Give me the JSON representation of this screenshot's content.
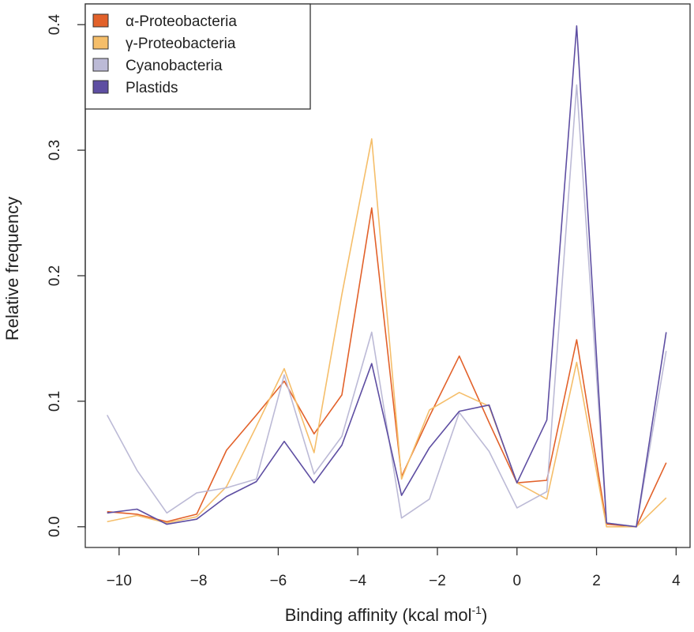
{
  "chart_data": {
    "type": "line",
    "xlabel": "Binding affinity (kcal mol",
    "xlabel_sup": "-1",
    "xlabel_close": ")",
    "ylabel": "Relative frequency",
    "xlim": [
      -10.85,
      4.35
    ],
    "ylim": [
      -0.0165,
      0.4165
    ],
    "xticks": [
      -10,
      -8,
      -6,
      -4,
      -2,
      0,
      2,
      4
    ],
    "xtick_labels": [
      "−10",
      "−8",
      "−6",
      "−4",
      "−2",
      "0",
      "2",
      "4"
    ],
    "yticks": [
      0.0,
      0.1,
      0.2,
      0.3,
      0.4
    ],
    "ytick_labels": [
      "0.0",
      "0.1",
      "0.2",
      "0.3",
      "0.4"
    ],
    "grid": false,
    "legend_position": "top-left",
    "x": [
      -10.3,
      -9.55,
      -8.8,
      -8.05,
      -7.3,
      -6.55,
      -5.85,
      -5.1,
      -4.4,
      -3.65,
      -2.9,
      -2.2,
      -1.45,
      -0.7,
      0.0,
      0.75,
      1.5,
      2.25,
      3.0,
      3.75
    ],
    "series": [
      {
        "name": "α-Proteobacteria",
        "color": "#e2612a",
        "values": [
          0.012,
          0.01,
          0.004,
          0.01,
          0.061,
          0.089,
          0.116,
          0.074,
          0.105,
          0.254,
          0.04,
          0.088,
          0.136,
          0.083,
          0.035,
          0.037,
          0.149,
          0.002,
          0.0,
          0.051
        ]
      },
      {
        "name": "γ-Proteobacteria",
        "color": "#f5be6a",
        "values": [
          0.004,
          0.009,
          0.003,
          0.008,
          0.032,
          0.08,
          0.126,
          0.059,
          0.185,
          0.309,
          0.038,
          0.093,
          0.107,
          0.096,
          0.035,
          0.022,
          0.131,
          0.0,
          0.0,
          0.023
        ]
      },
      {
        "name": "Cyanobacteria",
        "color": "#bcbad6",
        "values": [
          0.089,
          0.045,
          0.011,
          0.027,
          0.031,
          0.038,
          0.121,
          0.042,
          0.072,
          0.155,
          0.007,
          0.022,
          0.091,
          0.06,
          0.015,
          0.028,
          0.352,
          0.003,
          0.0,
          0.14
        ]
      },
      {
        "name": "Plastids",
        "color": "#5e4ea2",
        "values": [
          0.011,
          0.014,
          0.002,
          0.006,
          0.024,
          0.036,
          0.068,
          0.035,
          0.065,
          0.13,
          0.025,
          0.063,
          0.092,
          0.097,
          0.035,
          0.085,
          0.399,
          0.003,
          0.0,
          0.155
        ]
      }
    ]
  }
}
